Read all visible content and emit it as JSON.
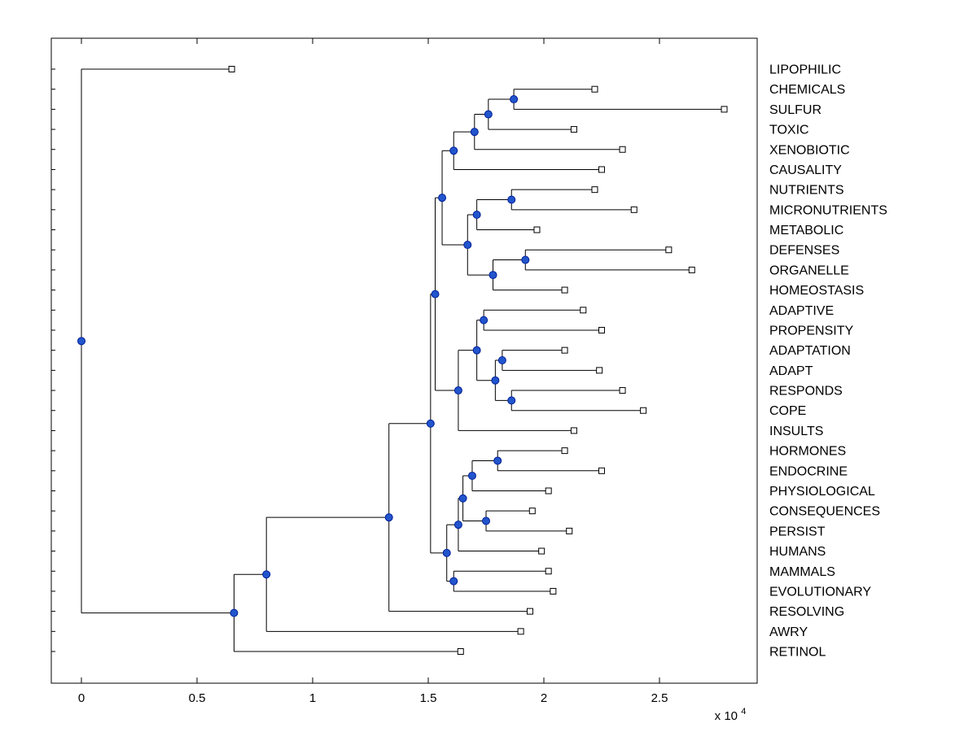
{
  "figure_colors": {
    "background": "#ffffff",
    "axis": "#000000",
    "line": "#000000",
    "node_fill": "#2255cc",
    "node_stroke": "#001e96",
    "leaf_fill": "#ffffff",
    "leaf_stroke": "#000000",
    "text": "#000000"
  },
  "chart_data": {
    "type": "dendrogram",
    "orientation": "left-to-right",
    "title": "",
    "grid": false,
    "x_axis": {
      "ticks": [
        0,
        0.5,
        1,
        1.5,
        2,
        2.5
      ],
      "tick_labels": [
        "0",
        "0.5",
        "1",
        "1.5",
        "2",
        "2.5"
      ],
      "multiplier_base": "x 10",
      "multiplier_exponent": "4",
      "range": [
        -0.13,
        2.92
      ],
      "units_note": "axis values are in multiples of 10^4"
    },
    "leaf_marker": "open-square",
    "branch_marker": "filled-circle",
    "leaves": [
      {
        "label": "LIPOPHILIC",
        "x": 0.65
      },
      {
        "label": "CHEMICALS",
        "x": 2.22
      },
      {
        "label": "SULFUR",
        "x": 2.78
      },
      {
        "label": "TOXIC",
        "x": 2.13
      },
      {
        "label": "XENOBIOTIC",
        "x": 2.34
      },
      {
        "label": "CAUSALITY",
        "x": 2.25
      },
      {
        "label": "NUTRIENTS",
        "x": 2.22
      },
      {
        "label": "MICRONUTRIENTS",
        "x": 2.39
      },
      {
        "label": "METABOLIC",
        "x": 1.97
      },
      {
        "label": "DEFENSES",
        "x": 2.54
      },
      {
        "label": "ORGANELLE",
        "x": 2.64
      },
      {
        "label": "HOMEOSTASIS",
        "x": 2.09
      },
      {
        "label": "ADAPTIVE",
        "x": 2.17
      },
      {
        "label": "PROPENSITY",
        "x": 2.25
      },
      {
        "label": "ADAPTATION",
        "x": 2.09
      },
      {
        "label": "ADAPT",
        "x": 2.24
      },
      {
        "label": "RESPONDS",
        "x": 2.34
      },
      {
        "label": "COPE",
        "x": 2.43
      },
      {
        "label": "INSULTS",
        "x": 2.13
      },
      {
        "label": "HORMONES",
        "x": 2.09
      },
      {
        "label": "ENDOCRINE",
        "x": 2.25
      },
      {
        "label": "PHYSIOLOGICAL",
        "x": 2.02
      },
      {
        "label": "CONSEQUENCES",
        "x": 1.95
      },
      {
        "label": "PERSIST",
        "x": 2.11
      },
      {
        "label": "HUMANS",
        "x": 1.99
      },
      {
        "label": "MAMMALS",
        "x": 2.02
      },
      {
        "label": "EVOLUTIONARY",
        "x": 2.04
      },
      {
        "label": "RESOLVING",
        "x": 1.94
      },
      {
        "label": "AWRY",
        "x": 1.9
      },
      {
        "label": "RETINOL",
        "x": 1.64
      }
    ],
    "tree": {
      "x": 0.0,
      "children": [
        {
          "leaf": "LIPOPHILIC",
          "x": 0.65
        },
        {
          "x": 0.66,
          "children": [
            {
              "x": 0.8,
              "children": [
                {
                  "x": 1.33,
                  "children": [
                    {
                      "x": 1.51,
                      "children": [
                        {
                          "x": 1.53,
                          "children": [
                            {
                              "x": 1.56,
                              "children": [
                                {
                                  "x": 1.61,
                                  "children": [
                                    {
                                      "x": 1.7,
                                      "children": [
                                        {
                                          "x": 1.76,
                                          "children": [
                                            {
                                              "x": 1.87,
                                              "children": [
                                                {
                                                  "leaf": "CHEMICALS",
                                                  "x": 2.22
                                                },
                                                {
                                                  "leaf": "SULFUR",
                                                  "x": 2.78
                                                }
                                              ]
                                            },
                                            {
                                              "leaf": "TOXIC",
                                              "x": 2.13
                                            }
                                          ]
                                        },
                                        {
                                          "leaf": "XENOBIOTIC",
                                          "x": 2.34
                                        }
                                      ]
                                    },
                                    {
                                      "leaf": "CAUSALITY",
                                      "x": 2.25
                                    }
                                  ]
                                },
                                {
                                  "x": 1.67,
                                  "children": [
                                    {
                                      "x": 1.71,
                                      "children": [
                                        {
                                          "x": 1.86,
                                          "children": [
                                            {
                                              "leaf": "NUTRIENTS",
                                              "x": 2.22
                                            },
                                            {
                                              "leaf": "MICRONUTRIENTS",
                                              "x": 2.39
                                            }
                                          ]
                                        },
                                        {
                                          "leaf": "METABOLIC",
                                          "x": 1.97
                                        }
                                      ]
                                    },
                                    {
                                      "x": 1.78,
                                      "children": [
                                        {
                                          "x": 1.92,
                                          "children": [
                                            {
                                              "leaf": "DEFENSES",
                                              "x": 2.54
                                            },
                                            {
                                              "leaf": "ORGANELLE",
                                              "x": 2.64
                                            }
                                          ]
                                        },
                                        {
                                          "leaf": "HOMEOSTASIS",
                                          "x": 2.09
                                        }
                                      ]
                                    }
                                  ]
                                }
                              ]
                            },
                            {
                              "x": 1.63,
                              "children": [
                                {
                                  "x": 1.71,
                                  "children": [
                                    {
                                      "x": 1.74,
                                      "children": [
                                        {
                                          "leaf": "ADAPTIVE",
                                          "x": 2.17
                                        },
                                        {
                                          "leaf": "PROPENSITY",
                                          "x": 2.25
                                        }
                                      ]
                                    },
                                    {
                                      "x": 1.79,
                                      "children": [
                                        {
                                          "x": 1.82,
                                          "children": [
                                            {
                                              "leaf": "ADAPTATION",
                                              "x": 2.09
                                            },
                                            {
                                              "leaf": "ADAPT",
                                              "x": 2.24
                                            }
                                          ]
                                        },
                                        {
                                          "x": 1.86,
                                          "children": [
                                            {
                                              "leaf": "RESPONDS",
                                              "x": 2.34
                                            },
                                            {
                                              "leaf": "COPE",
                                              "x": 2.43
                                            }
                                          ]
                                        }
                                      ]
                                    }
                                  ]
                                },
                                {
                                  "leaf": "INSULTS",
                                  "x": 2.13
                                }
                              ]
                            }
                          ]
                        },
                        {
                          "x": 1.58,
                          "children": [
                            {
                              "x": 1.63,
                              "children": [
                                {
                                  "x": 1.65,
                                  "children": [
                                    {
                                      "x": 1.69,
                                      "children": [
                                        {
                                          "x": 1.8,
                                          "children": [
                                            {
                                              "leaf": "HORMONES",
                                              "x": 2.09
                                            },
                                            {
                                              "leaf": "ENDOCRINE",
                                              "x": 2.25
                                            }
                                          ]
                                        },
                                        {
                                          "leaf": "PHYSIOLOGICAL",
                                          "x": 2.02
                                        }
                                      ]
                                    },
                                    {
                                      "x": 1.75,
                                      "children": [
                                        {
                                          "leaf": "CONSEQUENCES",
                                          "x": 1.95
                                        },
                                        {
                                          "leaf": "PERSIST",
                                          "x": 2.11
                                        }
                                      ]
                                    }
                                  ]
                                },
                                {
                                  "leaf": "HUMANS",
                                  "x": 1.99
                                }
                              ]
                            },
                            {
                              "x": 1.61,
                              "children": [
                                {
                                  "leaf": "MAMMALS",
                                  "x": 2.02
                                },
                                {
                                  "leaf": "EVOLUTIONARY",
                                  "x": 2.04
                                }
                              ]
                            }
                          ]
                        }
                      ]
                    },
                    {
                      "leaf": "RESOLVING",
                      "x": 1.94
                    }
                  ]
                },
                {
                  "leaf": "AWRY",
                  "x": 1.9
                }
              ]
            },
            {
              "leaf": "RETINOL",
              "x": 1.64
            }
          ]
        }
      ]
    }
  }
}
